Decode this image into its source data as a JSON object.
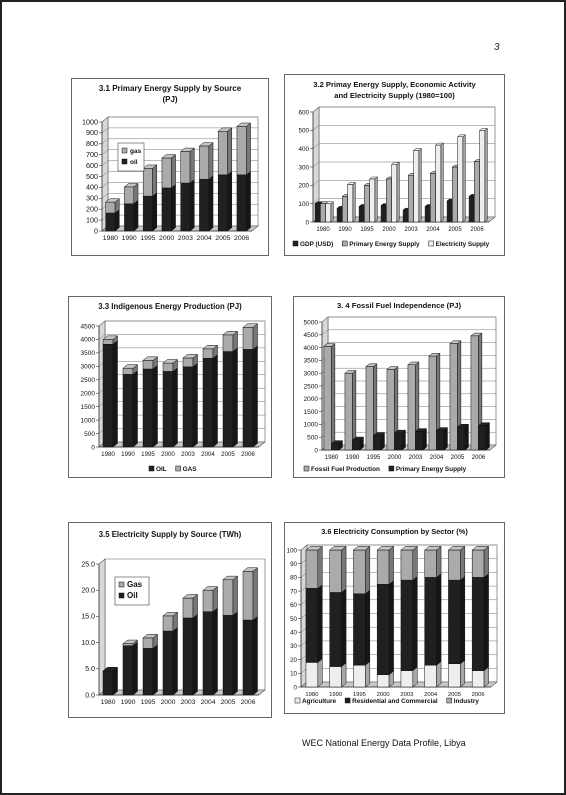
{
  "page": {
    "number": "3",
    "footer": "WEC National Energy Data Profile, Libya",
    "colors": {
      "dark": "#202020",
      "mid": "#aaaaaa",
      "light": "#eeeeee"
    }
  },
  "chart_data": [
    {
      "id": "c1",
      "type": "bar",
      "stacked": true,
      "title": [
        "3.1 Primary Energy Supply by Source",
        "(PJ)"
      ],
      "categories": [
        "1980",
        "1990",
        "1995",
        "2000",
        "2003",
        "2004",
        "2005",
        "2006"
      ],
      "series": [
        {
          "name": "oil",
          "values": [
            165,
            250,
            320,
            395,
            440,
            475,
            515,
            515
          ],
          "color": "#202020"
        },
        {
          "name": "gas",
          "values": [
            100,
            155,
            255,
            275,
            290,
            305,
            400,
            445
          ],
          "color": "#aaaaaa"
        }
      ],
      "ylim": [
        0,
        1000
      ],
      "ystep": 100,
      "legend": "top-left",
      "legendOrder": [
        1,
        0
      ],
      "grid": true,
      "ytickLabels": [
        "0",
        "100",
        "200",
        "300",
        "400",
        "500",
        "600",
        "700",
        "800",
        "900",
        "1000"
      ]
    },
    {
      "id": "c2",
      "type": "bar",
      "stacked": false,
      "title": [
        "3.2 Primay Energy Supply, Economic Activity",
        "and Electricity Supply (1980=100)"
      ],
      "categories": [
        "1980",
        "1990",
        "1995",
        "2000",
        "2003",
        "2004",
        "2005",
        "2006"
      ],
      "series": [
        {
          "name": "GDP (USD)",
          "values": [
            100,
            75,
            85,
            90,
            65,
            85,
            115,
            140
          ],
          "color": "#202020"
        },
        {
          "name": "Primary Energy Supply",
          "values": [
            100,
            140,
            200,
            235,
            255,
            265,
            300,
            330
          ],
          "color": "#aaaaaa"
        },
        {
          "name": "Electricity Supply",
          "values": [
            100,
            205,
            235,
            315,
            390,
            420,
            465,
            500
          ],
          "color": "#eeeeee"
        }
      ],
      "ylim": [
        0,
        600
      ],
      "ystep": 100,
      "legend": "bottom",
      "grid": true,
      "ytickLabels": [
        "0",
        "100",
        "200",
        "300",
        "400",
        "500",
        "600"
      ]
    },
    {
      "id": "c3",
      "type": "bar",
      "stacked": true,
      "title": [
        "3.3 Indigenous Energy Production (PJ)"
      ],
      "categories": [
        "1980",
        "1990",
        "1995",
        "2000",
        "2003",
        "2004",
        "2005",
        "2006"
      ],
      "series": [
        {
          "name": "OIL",
          "values": [
            3820,
            2700,
            2900,
            2810,
            2980,
            3300,
            3550,
            3630
          ],
          "color": "#202020"
        },
        {
          "name": "GAS",
          "values": [
            180,
            230,
            320,
            310,
            330,
            350,
            620,
            820
          ],
          "color": "#aaaaaa"
        }
      ],
      "ylim": [
        0,
        4500
      ],
      "ystep": 500,
      "legend": "bottom",
      "grid": true,
      "ytickLabels": [
        "0",
        "500",
        "1000",
        "1500",
        "2000",
        "2500",
        "3000",
        "3500",
        "4000",
        "4500"
      ]
    },
    {
      "id": "c4",
      "type": "bar",
      "stacked": false,
      "title": [
        "3. 4 Fossil Fuel Independence (PJ)"
      ],
      "categories": [
        "1980",
        "1990",
        "1995",
        "2000",
        "2003",
        "2004",
        "2005",
        "2006"
      ],
      "series": [
        {
          "name": "Fossil Fuel Production",
          "values": [
            4050,
            3000,
            3260,
            3150,
            3330,
            3670,
            4160,
            4460
          ],
          "color": "#aaaaaa"
        },
        {
          "name": "Primary Energy Supply",
          "values": [
            260,
            400,
            570,
            670,
            730,
            770,
            900,
            960
          ],
          "color": "#202020"
        }
      ],
      "ylim": [
        0,
        5000
      ],
      "ystep": 500,
      "legend": "bottom",
      "grid": true,
      "ytickLabels": [
        "0",
        "500",
        "1000",
        "1500",
        "2000",
        "2500",
        "3000",
        "3500",
        "4000",
        "4500",
        "5000"
      ]
    },
    {
      "id": "c5",
      "type": "bar",
      "stacked": true,
      "title": [
        "3.5 Electricity Supply by Source (TWh)"
      ],
      "categories": [
        "1980",
        "1990",
        "1995",
        "2000",
        "2003",
        "2004",
        "2005",
        "2006"
      ],
      "series": [
        {
          "name": "Oil",
          "values": [
            4.6,
            9.4,
            8.9,
            12.2,
            14.7,
            15.9,
            15.2,
            14.3
          ],
          "color": "#202020"
        },
        {
          "name": "Gas",
          "values": [
            0,
            0.4,
            2.0,
            2.9,
            3.8,
            4.1,
            6.8,
            9.3
          ],
          "color": "#aaaaaa"
        }
      ],
      "ylim": [
        0,
        25
      ],
      "ystep": 5,
      "legend": "top-left",
      "legendOrder": [
        1,
        0
      ],
      "grid": false,
      "ytickLabels": [
        "0.0",
        "5.0",
        "10.0",
        "15.0",
        "20.0",
        "25.0"
      ]
    },
    {
      "id": "c6",
      "type": "bar",
      "stacked": true,
      "title": [
        "3.6 Electricity Consumption by Sector (%)"
      ],
      "categories": [
        "1980",
        "1990",
        "1995",
        "2000",
        "2003",
        "2004",
        "2005",
        "2006"
      ],
      "series": [
        {
          "name": "Agriculture",
          "values": [
            18,
            15,
            16,
            9,
            12,
            16,
            17,
            12
          ],
          "color": "#eeeeee"
        },
        {
          "name": "Residential and Commercial",
          "values": [
            54,
            54,
            52,
            66,
            66,
            64,
            61,
            68
          ],
          "color": "#202020"
        },
        {
          "name": "Industry",
          "values": [
            28,
            31,
            32,
            25,
            22,
            20,
            22,
            20
          ],
          "color": "#aaaaaa"
        }
      ],
      "ylim": [
        0,
        100
      ],
      "ystep": 10,
      "legend": "bottom",
      "grid": true,
      "ytickLabels": [
        "0",
        "10",
        "20",
        "30",
        "40",
        "50",
        "60",
        "70",
        "80",
        "90",
        "100"
      ]
    }
  ]
}
